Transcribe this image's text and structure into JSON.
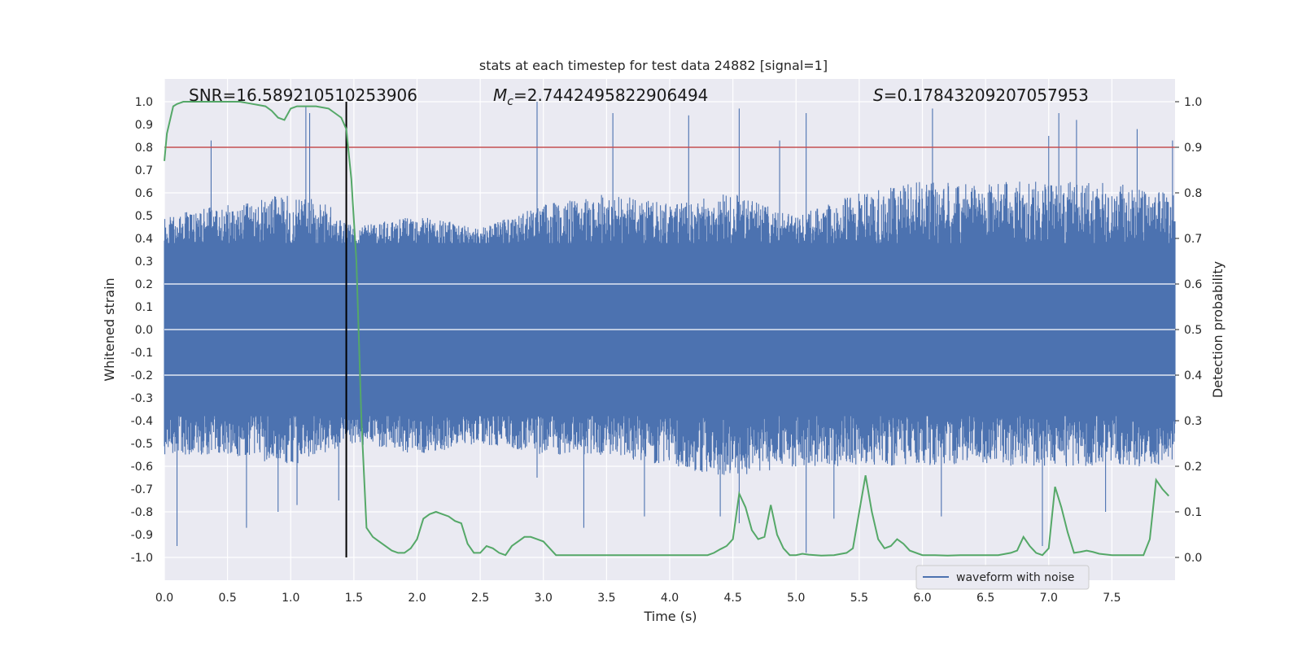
{
  "chart_data": {
    "type": "line",
    "title": "stats at each timestep for test data 24882 [signal=1]",
    "xlabel": "Time (s)",
    "ylabel_left": "Whitened strain",
    "ylabel_right": "Detection probability",
    "xlim": [
      0.0,
      8.0
    ],
    "ylim_left": [
      -1.1,
      1.1
    ],
    "ylim_right": [
      -0.05,
      1.05
    ],
    "xticks": [
      "0.0",
      "0.5",
      "1.0",
      "1.5",
      "2.0",
      "2.5",
      "3.0",
      "3.5",
      "4.0",
      "4.5",
      "5.0",
      "5.5",
      "6.0",
      "6.5",
      "7.0",
      "7.5"
    ],
    "yticks_left": [
      "1.0",
      "0.9",
      "0.8",
      "0.7",
      "0.6",
      "0.5",
      "0.4",
      "0.3",
      "0.2",
      "0.1",
      "0.0",
      "-0.1",
      "-0.2",
      "-0.3",
      "-0.4",
      "-0.5",
      "-0.6",
      "-0.7",
      "-0.8",
      "-0.9",
      "-1.0"
    ],
    "yticks_right": [
      "1.0",
      "0.9",
      "0.8",
      "0.7",
      "0.6",
      "0.5",
      "0.4",
      "0.3",
      "0.2",
      "0.1",
      "0.0"
    ],
    "grid": true,
    "legend_position": "lower-right",
    "annotations": {
      "snr": "SNR=16.589210510253906",
      "mc_symbol": "M",
      "mc_sub": "c",
      "mc_value": "=2.7442495822906494",
      "s_symbol": "S",
      "s_value": "=0.17843209207057953"
    },
    "threshold_right": 0.9,
    "vline_time": 1.44,
    "series": [
      {
        "name": "waveform with noise",
        "color": "#4c72b0",
        "envelope_upper": [
          [
            0.0,
            0.5
          ],
          [
            0.5,
            0.55
          ],
          [
            1.0,
            0.6
          ],
          [
            1.3,
            0.55
          ],
          [
            1.5,
            0.45
          ],
          [
            2.0,
            0.5
          ],
          [
            2.5,
            0.45
          ],
          [
            3.0,
            0.55
          ],
          [
            3.5,
            0.6
          ],
          [
            4.0,
            0.55
          ],
          [
            4.5,
            0.6
          ],
          [
            5.0,
            0.5
          ],
          [
            5.5,
            0.6
          ],
          [
            6.0,
            0.65
          ],
          [
            6.5,
            0.65
          ],
          [
            7.0,
            0.65
          ],
          [
            7.5,
            0.65
          ],
          [
            8.0,
            0.6
          ]
        ],
        "envelope_lower": [
          [
            0.0,
            -0.55
          ],
          [
            0.5,
            -0.55
          ],
          [
            1.0,
            -0.6
          ],
          [
            1.5,
            -0.5
          ],
          [
            2.0,
            -0.55
          ],
          [
            2.5,
            -0.5
          ],
          [
            3.0,
            -0.55
          ],
          [
            3.5,
            -0.55
          ],
          [
            4.0,
            -0.6
          ],
          [
            4.5,
            -0.65
          ],
          [
            5.0,
            -0.6
          ],
          [
            5.5,
            -0.6
          ],
          [
            6.0,
            -0.6
          ],
          [
            6.5,
            -0.6
          ],
          [
            7.0,
            -0.6
          ],
          [
            7.5,
            -0.6
          ],
          [
            8.0,
            -0.6
          ]
        ],
        "peaks": [
          [
            0.1,
            -0.95
          ],
          [
            0.37,
            0.83
          ],
          [
            0.65,
            -0.87
          ],
          [
            1.12,
            0.98
          ],
          [
            1.15,
            0.95
          ],
          [
            0.9,
            -0.8
          ],
          [
            1.05,
            -0.77
          ],
          [
            1.38,
            -0.75
          ],
          [
            2.95,
            1.0
          ],
          [
            2.95,
            -0.65
          ],
          [
            3.32,
            -0.87
          ],
          [
            3.55,
            0.95
          ],
          [
            3.8,
            -0.82
          ],
          [
            4.15,
            0.94
          ],
          [
            4.4,
            -0.82
          ],
          [
            4.55,
            0.97
          ],
          [
            4.55,
            -0.85
          ],
          [
            4.87,
            0.83
          ],
          [
            5.08,
            -0.98
          ],
          [
            5.08,
            0.95
          ],
          [
            5.3,
            -0.83
          ],
          [
            6.08,
            0.97
          ],
          [
            6.15,
            -0.82
          ],
          [
            6.95,
            -0.95
          ],
          [
            7.0,
            0.85
          ],
          [
            7.08,
            0.95
          ],
          [
            7.22,
            0.92
          ],
          [
            7.45,
            -0.8
          ],
          [
            7.7,
            0.88
          ],
          [
            7.98,
            0.83
          ]
        ]
      },
      {
        "name": "detection probability",
        "color": "#55a868",
        "axis": "right",
        "x": [
          0.0,
          0.02,
          0.07,
          0.1,
          0.15,
          0.2,
          0.3,
          0.4,
          0.5,
          0.6,
          0.7,
          0.8,
          0.85,
          0.9,
          0.95,
          1.0,
          1.05,
          1.1,
          1.15,
          1.2,
          1.3,
          1.35,
          1.4,
          1.44,
          1.48,
          1.52,
          1.56,
          1.6,
          1.65,
          1.7,
          1.8,
          1.85,
          1.9,
          1.95,
          2.0,
          2.05,
          2.1,
          2.15,
          2.2,
          2.25,
          2.3,
          2.35,
          2.4,
          2.45,
          2.5,
          2.55,
          2.6,
          2.65,
          2.7,
          2.75,
          2.8,
          2.85,
          2.9,
          2.95,
          3.0,
          3.05,
          3.1,
          3.15,
          3.2,
          3.3,
          3.4,
          3.5,
          3.6,
          3.7,
          3.8,
          3.9,
          4.0,
          4.1,
          4.2,
          4.3,
          4.35,
          4.4,
          4.45,
          4.5,
          4.55,
          4.6,
          4.65,
          4.7,
          4.75,
          4.8,
          4.85,
          4.9,
          4.95,
          5.0,
          5.05,
          5.1,
          5.2,
          5.3,
          5.4,
          5.45,
          5.5,
          5.55,
          5.6,
          5.65,
          5.7,
          5.75,
          5.8,
          5.85,
          5.9,
          6.0,
          6.1,
          6.2,
          6.3,
          6.4,
          6.5,
          6.6,
          6.7,
          6.75,
          6.8,
          6.85,
          6.9,
          6.95,
          7.0,
          7.05,
          7.1,
          7.15,
          7.2,
          7.25,
          7.3,
          7.35,
          7.4,
          7.5,
          7.6,
          7.7,
          7.75,
          7.8,
          7.85,
          7.9,
          7.95
        ],
        "y": [
          0.87,
          0.93,
          0.99,
          0.995,
          1.0,
          1.0,
          1.0,
          1.0,
          1.0,
          1.0,
          0.995,
          0.99,
          0.98,
          0.965,
          0.96,
          0.985,
          0.99,
          0.99,
          0.99,
          0.99,
          0.985,
          0.975,
          0.965,
          0.94,
          0.83,
          0.65,
          0.3,
          0.065,
          0.045,
          0.035,
          0.015,
          0.01,
          0.01,
          0.02,
          0.04,
          0.085,
          0.095,
          0.1,
          0.095,
          0.09,
          0.08,
          0.075,
          0.03,
          0.01,
          0.01,
          0.025,
          0.02,
          0.01,
          0.005,
          0.025,
          0.035,
          0.045,
          0.045,
          0.04,
          0.035,
          0.02,
          0.005,
          0.005,
          0.005,
          0.005,
          0.005,
          0.005,
          0.005,
          0.005,
          0.005,
          0.005,
          0.005,
          0.005,
          0.005,
          0.005,
          0.01,
          0.018,
          0.025,
          0.04,
          0.14,
          0.11,
          0.06,
          0.04,
          0.045,
          0.115,
          0.05,
          0.02,
          0.005,
          0.005,
          0.008,
          0.006,
          0.004,
          0.005,
          0.01,
          0.02,
          0.1,
          0.18,
          0.1,
          0.04,
          0.02,
          0.025,
          0.04,
          0.03,
          0.015,
          0.005,
          0.005,
          0.004,
          0.005,
          0.005,
          0.005,
          0.005,
          0.01,
          0.015,
          0.045,
          0.025,
          0.01,
          0.005,
          0.02,
          0.155,
          0.11,
          0.055,
          0.01,
          0.012,
          0.015,
          0.012,
          0.008,
          0.005,
          0.005,
          0.005,
          0.005,
          0.04,
          0.17,
          0.15,
          0.135
        ]
      }
    ],
    "colors": {
      "axes_bg": "#eaeaf2",
      "grid": "#ffffff",
      "threshold": "#c44e52",
      "vline": "#000000",
      "waveform": "#4c72b0",
      "probability": "#55a868"
    }
  }
}
